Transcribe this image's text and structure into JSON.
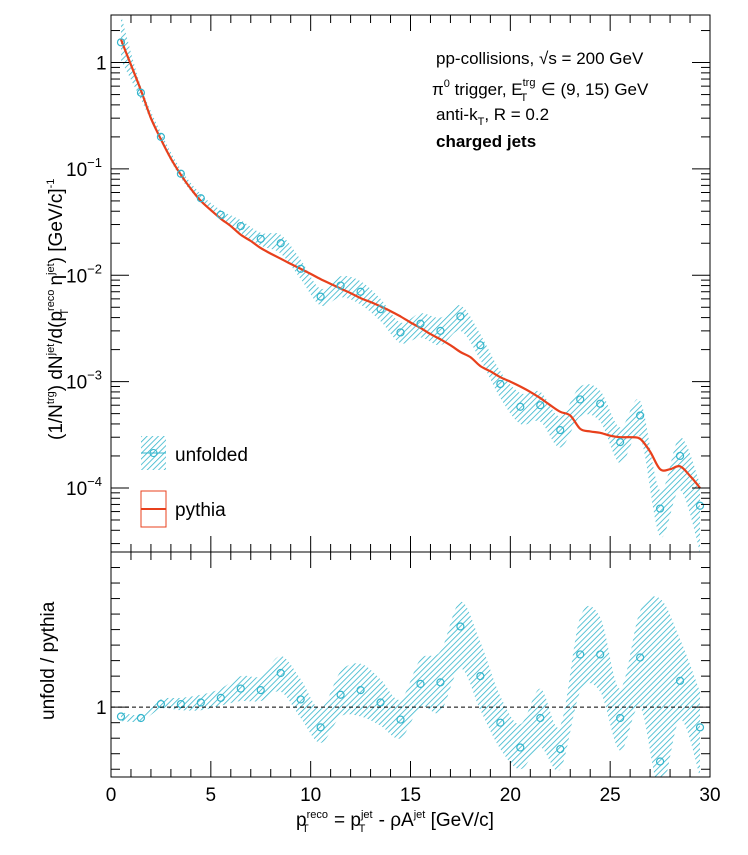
{
  "chart_data": [
    {
      "type": "line",
      "panel": "top",
      "ylabel_parts": [
        "(1/N",
        "trg",
        ") dN",
        "jet",
        "/d(p",
        "reco",
        "T",
        " η",
        "jet",
        ") [GeV/c]",
        "-1"
      ],
      "yscale": "log",
      "ylim": [
        2.5e-05,
        2.8
      ],
      "xlim": [
        0,
        30
      ],
      "y_ticks": [
        {
          "base": "1",
          "exp": ""
        },
        {
          "base": "10",
          "exp": "−1"
        },
        {
          "base": "10",
          "exp": "−2"
        },
        {
          "base": "10",
          "exp": "−3"
        },
        {
          "base": "10",
          "exp": "−4"
        }
      ],
      "annotations": {
        "line1": "pp-collisions, √s = 200 GeV",
        "line2_a": "π",
        "line2_sup": "0",
        "line2_b": " trigger, E",
        "line2_sup2": "trg",
        "line2_sub2": "T",
        "line2_c": " ∈ (9, 15) GeV",
        "line3_a": "anti-k",
        "line3_sub": "T",
        "line3_b": ", R = 0.2",
        "line4": "charged jets"
      },
      "legend": {
        "unfolded": "unfolded",
        "pythia": "pythia",
        "position": "bottom-left"
      },
      "series": [
        {
          "name": "unfolded",
          "color": "#33b5cc",
          "x": [
            0.5,
            1.5,
            2.5,
            3.5,
            4.5,
            5.5,
            6.5,
            7.5,
            8.5,
            9.5,
            10.5,
            11.5,
            12.5,
            13.5,
            14.5,
            15.5,
            16.5,
            17.5,
            18.5,
            19.5,
            20.5,
            21.5,
            22.5,
            23.5,
            24.5,
            25.5,
            26.5,
            27.5,
            28.5,
            29.5
          ],
          "y": [
            1.55,
            0.52,
            0.2,
            0.09,
            0.053,
            0.037,
            0.029,
            0.022,
            0.02,
            0.0115,
            0.0063,
            0.008,
            0.007,
            0.0048,
            0.0029,
            0.0035,
            0.003,
            0.0041,
            0.0022,
            0.00095,
            0.00058,
            0.0006,
            0.00035,
            0.00068,
            0.00062,
            0.00027,
            0.00048,
            6.4e-05,
            0.0002,
            6.8e-05
          ],
          "band_lo": [
            1.05,
            0.45,
            0.18,
            0.082,
            0.049,
            0.034,
            0.025,
            0.019,
            0.016,
            0.0092,
            0.0052,
            0.0062,
            0.0053,
            0.0037,
            0.0023,
            0.0026,
            0.0022,
            0.003,
            0.0016,
            0.0007,
            0.0004,
            0.00042,
            0.00024,
            0.00047,
            0.00042,
            0.00017,
            0.0003,
            3.5e-05,
            9.5e-05,
            2.5e-05
          ],
          "band_hi": [
            2.8,
            0.6,
            0.22,
            0.099,
            0.058,
            0.041,
            0.033,
            0.025,
            0.024,
            0.014,
            0.0075,
            0.0098,
            0.0088,
            0.006,
            0.0036,
            0.0044,
            0.004,
            0.0052,
            0.0028,
            0.00125,
            0.00078,
            0.0008,
            0.00047,
            0.0009,
            0.00082,
            0.00037,
            0.00066,
            9.5e-05,
            0.0003,
            0.00011
          ]
        },
        {
          "name": "pythia",
          "color": "#e8401c",
          "x": [
            0.5,
            1,
            1.5,
            2,
            2.5,
            3,
            3.5,
            4,
            4.5,
            5,
            5.5,
            6,
            6.5,
            7,
            7.5,
            8,
            8.5,
            9,
            9.5,
            10,
            10.5,
            11,
            11.5,
            12,
            12.5,
            13,
            13.5,
            14,
            14.5,
            15,
            15.5,
            16,
            16.5,
            17,
            17.5,
            18,
            18.5,
            19,
            19.5,
            20,
            20.5,
            21,
            21.5,
            22,
            22.5,
            23,
            23.5,
            24,
            24.5,
            25,
            25.5,
            26,
            26.5,
            27,
            27.5,
            28,
            28.5,
            29,
            29.5
          ],
          "y": [
            1.65,
            0.95,
            0.55,
            0.3,
            0.19,
            0.125,
            0.088,
            0.065,
            0.05,
            0.041,
            0.034,
            0.029,
            0.024,
            0.021,
            0.018,
            0.016,
            0.0143,
            0.0128,
            0.0115,
            0.0103,
            0.0092,
            0.0083,
            0.0075,
            0.0068,
            0.0061,
            0.0056,
            0.0051,
            0.0046,
            0.0041,
            0.0036,
            0.0032,
            0.0028,
            0.0025,
            0.0022,
            0.0019,
            0.0017,
            0.0014,
            0.00125,
            0.0011,
            0.001,
            0.0009,
            0.0008,
            0.0007,
            0.0006,
            0.00052,
            0.00048,
            0.00036,
            0.00034,
            0.00033,
            0.00031,
            0.0003,
            0.0003,
            0.00029,
            0.00022,
            0.00015,
            0.00015,
            0.00016,
            0.00013,
            0.0001
          ]
        }
      ]
    },
    {
      "type": "line",
      "panel": "bottom",
      "ylabel": "unfold / pythia",
      "xlabel_parts": [
        "p",
        "reco",
        "T",
        " = p",
        "jet",
        "T",
        " - ρA",
        "jet",
        " [GeV/c]"
      ],
      "xlim": [
        0,
        30
      ],
      "ylim": [
        0.55,
        2.0
      ],
      "x_ticks": [
        "0",
        "5",
        "10",
        "15",
        "20",
        "25",
        "30"
      ],
      "y_ticks": [
        "1"
      ],
      "reference_line": 1,
      "series": [
        {
          "name": "ratio",
          "color": "#33b5cc",
          "x": [
            0.5,
            1.5,
            2.5,
            3.5,
            4.5,
            5.5,
            6.5,
            7.5,
            8.5,
            9.5,
            10.5,
            11.5,
            12.5,
            13.5,
            14.5,
            15.5,
            16.5,
            17.5,
            18.5,
            19.5,
            20.5,
            21.5,
            22.5,
            23.5,
            24.5,
            25.5,
            26.5,
            27.5,
            28.5,
            29.5
          ],
          "y": [
            0.94,
            0.93,
            1.02,
            1.02,
            1.03,
            1.06,
            1.12,
            1.11,
            1.22,
            1.05,
            0.87,
            1.08,
            1.11,
            1.03,
            0.92,
            1.15,
            1.16,
            1.52,
            1.2,
            0.9,
            0.74,
            0.93,
            0.73,
            1.34,
            1.34,
            0.93,
            1.32,
            0.65,
            1.17,
            0.87
          ],
          "band_lo": [
            0.91,
            0.91,
            0.99,
            0.98,
            0.98,
            1.01,
            1.04,
            1.04,
            1.1,
            0.93,
            0.77,
            0.94,
            0.94,
            0.88,
            0.8,
            1.0,
            0.97,
            1.25,
            0.98,
            0.73,
            0.6,
            0.74,
            0.6,
            1.1,
            1.1,
            0.72,
            1.0,
            0.46,
            0.92,
            0.55
          ],
          "band_hi": [
            0.97,
            0.95,
            1.05,
            1.06,
            1.08,
            1.12,
            1.2,
            1.2,
            1.33,
            1.18,
            0.99,
            1.23,
            1.28,
            1.18,
            1.05,
            1.31,
            1.36,
            1.68,
            1.42,
            1.07,
            0.89,
            1.12,
            0.88,
            1.58,
            1.58,
            1.12,
            1.62,
            1.7,
            1.44,
            1.1
          ]
        }
      ]
    }
  ]
}
